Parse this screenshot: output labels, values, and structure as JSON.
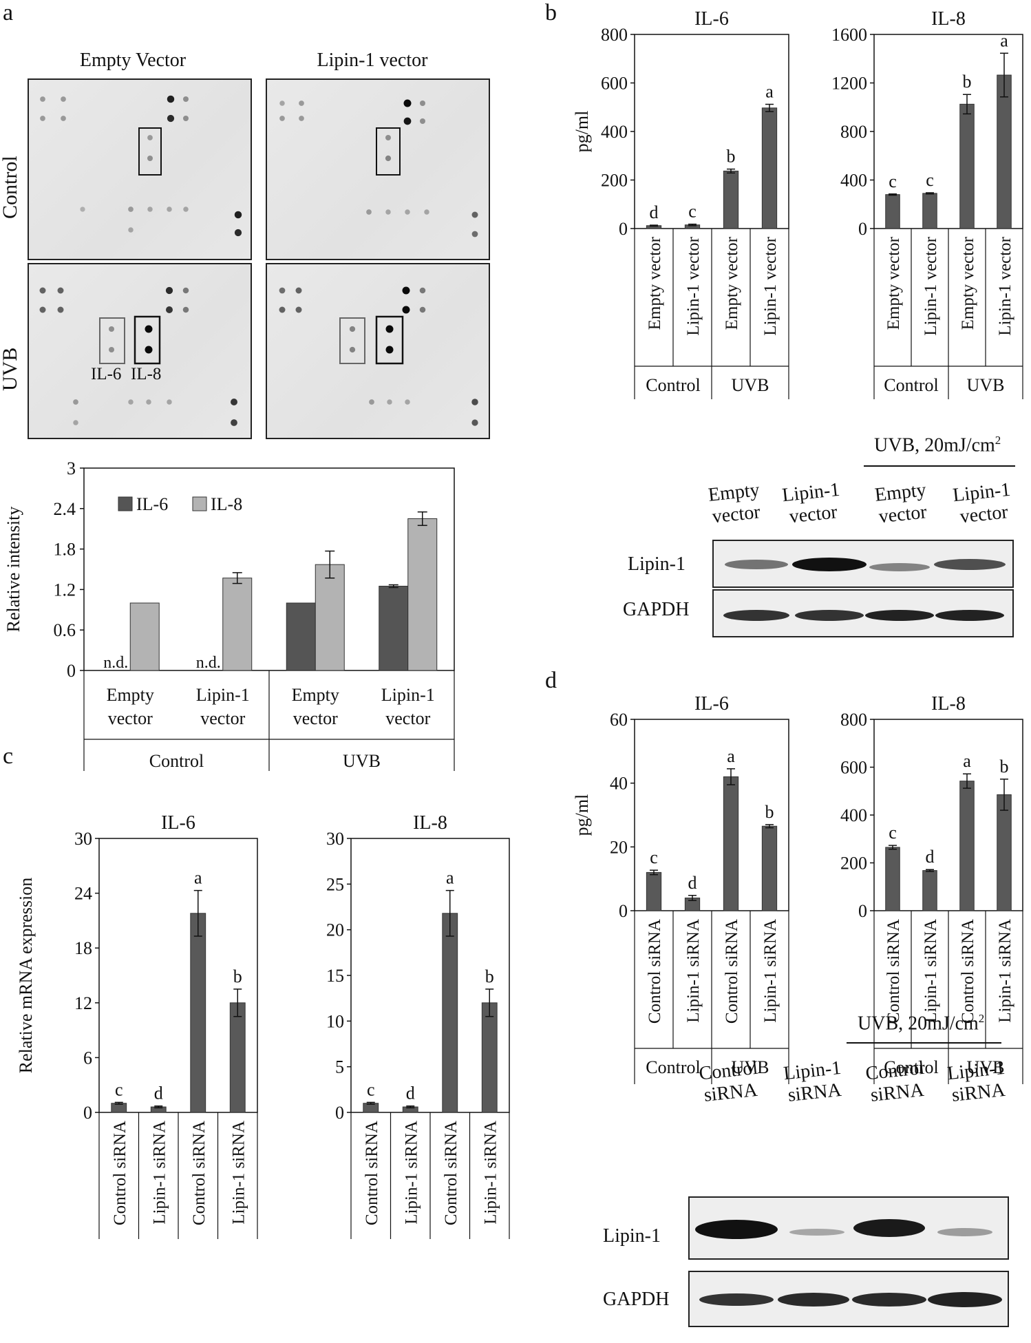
{
  "panel_a": {
    "letter": "a",
    "col_titles": [
      "Empty Vector",
      "Lipin-1 vector"
    ],
    "row_labels": [
      "Control",
      "UVB"
    ],
    "box_labels": [
      "IL-6",
      "IL-8"
    ]
  },
  "panel_b": {
    "letter": "b"
  },
  "panel_c": {
    "letter": "c"
  },
  "panel_d": {
    "letter": "d"
  },
  "western_b": {
    "header": "UVB, 20mJ/cm",
    "header_sup": "2",
    "lanes": [
      [
        "Empty",
        "vector"
      ],
      [
        "Lipin-1",
        "vector"
      ],
      [
        "Empty",
        "vector"
      ],
      [
        "Lipin-1",
        "vector"
      ]
    ],
    "rows": [
      "Lipin-1",
      "GAPDH"
    ]
  },
  "western_d": {
    "header": "UVB, 20mJ/cm",
    "header_sup": "2",
    "lanes": [
      [
        "Control",
        "siRNA"
      ],
      [
        "Lipin-1",
        "siRNA"
      ],
      [
        "Control",
        "siRNA"
      ],
      [
        "Lipin-1",
        "siRNA"
      ]
    ],
    "rows": [
      "Lipin-1",
      "GAPDH"
    ]
  },
  "chart_data": [
    {
      "id": "a_bar",
      "type": "bar",
      "ylabel": "Relative intensity",
      "ylim": [
        0,
        3
      ],
      "yticks": [
        "0",
        "0.6",
        "1.2",
        "1.8",
        "2.4",
        "3"
      ],
      "categories": [
        [
          "Empty",
          "vector"
        ],
        [
          "Lipin-1",
          "vector"
        ],
        [
          "Empty",
          "vector"
        ],
        [
          "Lipin-1",
          "vector"
        ]
      ],
      "groups": [
        "Control",
        "UVB"
      ],
      "legend": [
        "IL-6",
        "IL-8"
      ],
      "series": [
        {
          "name": "IL-6",
          "color": "#555555",
          "values": [
            0,
            0,
            1.0,
            1.25
          ],
          "errors": [
            0,
            0,
            0,
            0.02
          ],
          "labels": [
            "n.d.",
            "n.d.",
            "",
            ""
          ]
        },
        {
          "name": "IL-8",
          "color": "#b3b3b3",
          "values": [
            1.0,
            1.37,
            1.57,
            2.25
          ],
          "errors": [
            0,
            0.08,
            0.2,
            0.1
          ],
          "labels": [
            "",
            "",
            "",
            ""
          ]
        }
      ]
    },
    {
      "id": "b_il6",
      "type": "bar",
      "title": "IL-6",
      "ylabel": "pg/ml",
      "ylim": [
        0,
        800
      ],
      "yticks": [
        "0",
        "200",
        "400",
        "600",
        "800"
      ],
      "categories": [
        "Empty vector",
        "Lipin-1 vector",
        "Empty vector",
        "Lipin-1 vector"
      ],
      "groups": [
        "Control",
        "UVB"
      ],
      "values": [
        12,
        15,
        237,
        497
      ],
      "errors": [
        2,
        3,
        8,
        15
      ],
      "letters": [
        "d",
        "c",
        "b",
        "a"
      ]
    },
    {
      "id": "b_il8",
      "type": "bar",
      "title": "IL-8",
      "ylabel": "",
      "ylim": [
        0,
        1600
      ],
      "yticks": [
        "0",
        "400",
        "800",
        "1200",
        "1600"
      ],
      "categories": [
        "Empty vector",
        "Lipin-1 vector",
        "Empty vector",
        "Lipin-1 vector"
      ],
      "groups": [
        "Control",
        "UVB"
      ],
      "values": [
        280,
        290,
        1025,
        1265
      ],
      "errors": [
        5,
        5,
        80,
        180
      ],
      "letters": [
        "c",
        "c",
        "b",
        "a"
      ]
    },
    {
      "id": "c_il6",
      "type": "bar",
      "title": "IL-6",
      "ylabel": "Relative  mRNA expression",
      "ylim": [
        0,
        30
      ],
      "yticks": [
        "0",
        "6",
        "12",
        "18",
        "24",
        "30"
      ],
      "categories": [
        "Control siRNA",
        "Lipin-1 siRNA",
        "Control siRNA",
        "Lipin-1 siRNA"
      ],
      "groups": [
        "Control",
        "UVB"
      ],
      "values": [
        1.0,
        0.6,
        21.8,
        12.0
      ],
      "errors": [
        0.1,
        0.1,
        2.5,
        1.5
      ],
      "letters": [
        "c",
        "d",
        "a",
        "b"
      ]
    },
    {
      "id": "c_il8",
      "type": "bar",
      "title": "IL-8",
      "ylabel": "",
      "ylim": [
        0,
        30
      ],
      "yticks": [
        "0",
        "5",
        "10",
        "15",
        "20",
        "25",
        "30"
      ],
      "categories": [
        "Control siRNA",
        "Lipin-1 siRNA",
        "Control siRNA",
        "Lipin-1 siRNA"
      ],
      "groups": [
        "Control",
        "UVB"
      ],
      "values": [
        1.0,
        0.6,
        21.8,
        12.0
      ],
      "errors": [
        0.1,
        0.1,
        2.5,
        1.5
      ],
      "letters": [
        "c",
        "d",
        "a",
        "b"
      ]
    },
    {
      "id": "d_il6",
      "type": "bar",
      "title": "IL-6",
      "ylabel": "pg/ml",
      "ylim": [
        0,
        60
      ],
      "yticks": [
        "0",
        "20",
        "40",
        "60"
      ],
      "categories": [
        "Control siRNA",
        "Lipin-1 siRNA",
        "Control siRNA",
        "Lipin-1 siRNA"
      ],
      "groups": [
        "Control",
        "UVB"
      ],
      "values": [
        12,
        4,
        42,
        26.5
      ],
      "errors": [
        0.7,
        0.8,
        2.5,
        0.5
      ],
      "letters": [
        "c",
        "d",
        "a",
        "b"
      ]
    },
    {
      "id": "d_il8",
      "type": "bar",
      "title": "IL-8",
      "ylabel": "",
      "ylim": [
        0,
        800
      ],
      "yticks": [
        "0",
        "200",
        "400",
        "600",
        "800"
      ],
      "categories": [
        "Control siRNA",
        "Lipin-1 siRNA",
        "Control siRNA",
        "Lipin-1 siRNA"
      ],
      "groups": [
        "Control",
        "UVB"
      ],
      "values": [
        265,
        168,
        542,
        485
      ],
      "errors": [
        8,
        4,
        30,
        65
      ],
      "letters": [
        "c",
        "d",
        "a",
        "b"
      ]
    }
  ]
}
